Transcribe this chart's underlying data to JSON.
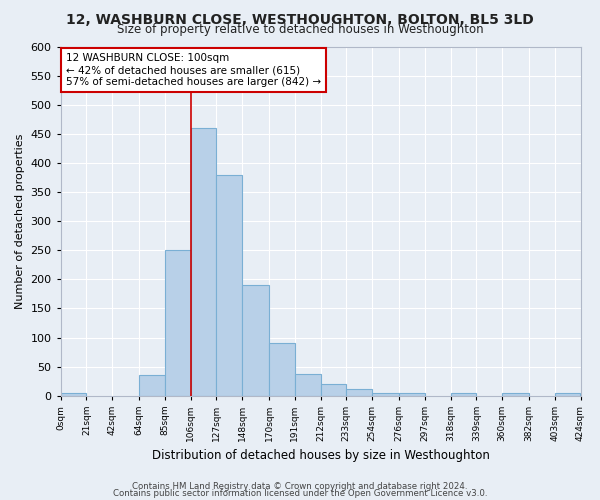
{
  "title": "12, WASHBURN CLOSE, WESTHOUGHTON, BOLTON, BL5 3LD",
  "subtitle": "Size of property relative to detached houses in Westhoughton",
  "xlabel": "Distribution of detached houses by size in Westhoughton",
  "ylabel": "Number of detached properties",
  "bar_color": "#b8d0e8",
  "bar_edge_color": "#7aafd4",
  "bin_edges": [
    0,
    21,
    42,
    64,
    85,
    106,
    127,
    148,
    170,
    191,
    212,
    233,
    254,
    276,
    297,
    318,
    339,
    360,
    382,
    403,
    424
  ],
  "bar_heights": [
    5,
    0,
    0,
    35,
    250,
    460,
    380,
    190,
    90,
    38,
    20,
    12,
    5,
    5,
    0,
    5,
    0,
    5,
    0,
    5
  ],
  "tick_labels": [
    "0sqm",
    "21sqm",
    "42sqm",
    "64sqm",
    "85sqm",
    "106sqm",
    "127sqm",
    "148sqm",
    "170sqm",
    "191sqm",
    "212sqm",
    "233sqm",
    "254sqm",
    "276sqm",
    "297sqm",
    "318sqm",
    "339sqm",
    "360sqm",
    "382sqm",
    "403sqm",
    "424sqm"
  ],
  "property_line_x": 106,
  "property_line_color": "#cc0000",
  "annotation_line1": "12 WASHBURN CLOSE: 100sqm",
  "annotation_line2": "← 42% of detached houses are smaller (615)",
  "annotation_line3": "57% of semi-detached houses are larger (842) →",
  "annotation_box_color": "#ffffff",
  "annotation_box_edge_color": "#cc0000",
  "ylim": [
    0,
    600
  ],
  "background_color": "#e8eef5",
  "grid_color": "#ffffff",
  "fig_bg_color": "#e8eef5",
  "footer_line1": "Contains HM Land Registry data © Crown copyright and database right 2024.",
  "footer_line2": "Contains public sector information licensed under the Open Government Licence v3.0."
}
